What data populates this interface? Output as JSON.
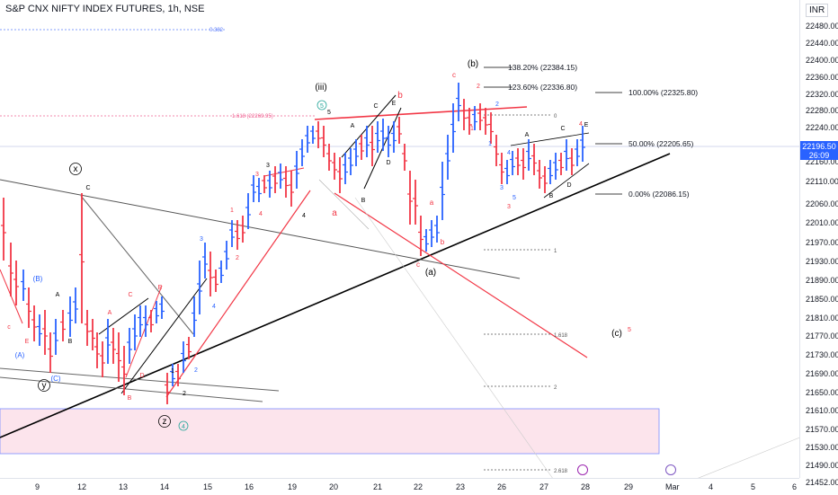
{
  "chart": {
    "title": "S&P CNX NIFTY INDEX FUTURES, 1h, NSE",
    "currency": "INR",
    "last_price": "22196.50",
    "countdown": "26:09"
  },
  "chart_data": {
    "type": "candlestick",
    "ylim": [
      21440,
      22510
    ],
    "y_ticks": [
      "22480.00",
      "22440.00",
      "22400.00",
      "22360.00",
      "22320.00",
      "22280.00",
      "22240.00",
      "22160.00",
      "22110.00",
      "22060.00",
      "22010.00",
      "21970.00",
      "21930.00",
      "21890.00",
      "21850.00",
      "21810.00",
      "21770.00",
      "21730.00",
      "21690.00",
      "21650.00",
      "21610.00",
      "21570.00",
      "21530.00",
      "21490.00",
      "21452.00"
    ],
    "x_ticks": [
      "9",
      "12",
      "13",
      "14",
      "15",
      "16",
      "19",
      "20",
      "21",
      "22",
      "23",
      "26",
      "27",
      "28",
      "29",
      "Mar",
      "4",
      "5",
      "6"
    ],
    "fib_levels": [
      {
        "label": "138.20% (22384.15)",
        "value": 22384.15
      },
      {
        "label": "123.60% (22336.80)",
        "value": 22336.8
      },
      {
        "label": "100.00% (22325.80)",
        "value": 22325.8
      },
      {
        "label": "50.00% (22205.65)",
        "value": 22205.65
      },
      {
        "label": "0.00% (22086.15)",
        "value": 22086.15
      }
    ],
    "ext_levels": [
      "0.382",
      "1.618 (22269.95)",
      "0",
      "1",
      "1.618",
      "2",
      "2.618"
    ],
    "wave_labels": [
      "(b)",
      "(iii)",
      "x",
      "z",
      "y",
      "(a)",
      "(c)",
      "(A)",
      "(B)",
      "(C)",
      "A",
      "B",
      "C",
      "D",
      "E",
      "a",
      "b",
      "c",
      "d",
      "e",
      "1",
      "2",
      "3",
      "4",
      "5",
      "5",
      "4"
    ],
    "bull_color": "#2962ff",
    "bear_color": "#f23645"
  }
}
